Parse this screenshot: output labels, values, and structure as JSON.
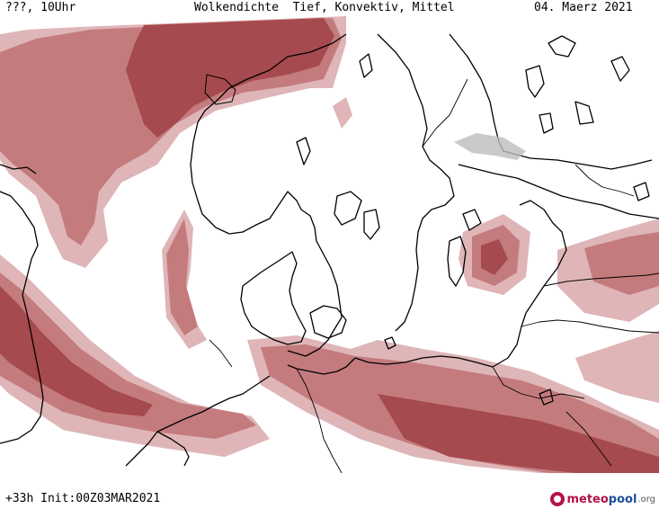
{
  "header": {
    "left": "???, 10Uhr",
    "title": "Wolkendichte  Tief, Konvektiv, Mittel",
    "date": "04. Maerz 2021"
  },
  "footer": {
    "run_info": "+33h Init:00Z03MAR2021",
    "logo_part1": "meteo",
    "logo_part2": "pool",
    "logo_part3": ".org"
  },
  "colors": {
    "cloud_dense": "#a54a4e",
    "cloud_medium": "#c47b7e",
    "cloud_light": "#dcaeb0",
    "coast": "#000000",
    "background": "#ffffff"
  }
}
